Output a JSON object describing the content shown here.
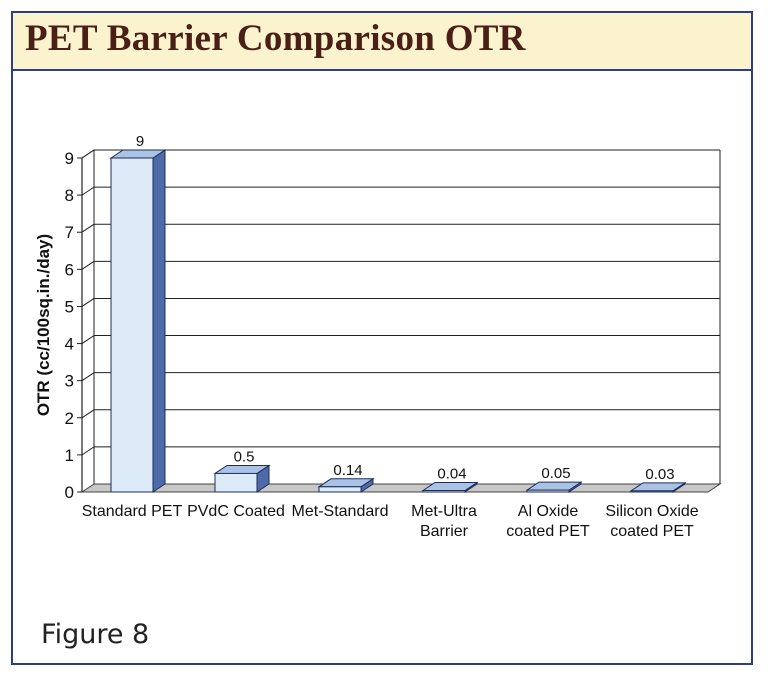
{
  "title": "PET Barrier Comparison OTR",
  "caption": "Figure 8",
  "chart_data": {
    "type": "bar",
    "ylabel": "OTR (cc/100sq.in./day)",
    "ylim": [
      0,
      9
    ],
    "yticks": [
      "0",
      "1",
      "2",
      "3",
      "4",
      "5",
      "6",
      "7",
      "8",
      "9"
    ],
    "grid": true,
    "categories": [
      [
        "Standard PET"
      ],
      [
        "PVdC Coated"
      ],
      [
        "Met-Standard"
      ],
      [
        "Met-Ultra",
        "Barrier"
      ],
      [
        "Al Oxide",
        "coated PET"
      ],
      [
        "Silicon Oxide",
        "coated PET"
      ]
    ],
    "values": [
      9,
      0.5,
      0.14,
      0.04,
      0.05,
      0.03
    ],
    "data_labels": [
      "9",
      "0.5",
      "0.14",
      "0.04",
      "0.05",
      "0.03"
    ],
    "colors": {
      "bar_front": "#dceaf7",
      "bar_side": "#4f6aa8",
      "bar_top": "#a9c2e6",
      "grid": "#222222",
      "floor": "#c8c8c8"
    }
  }
}
